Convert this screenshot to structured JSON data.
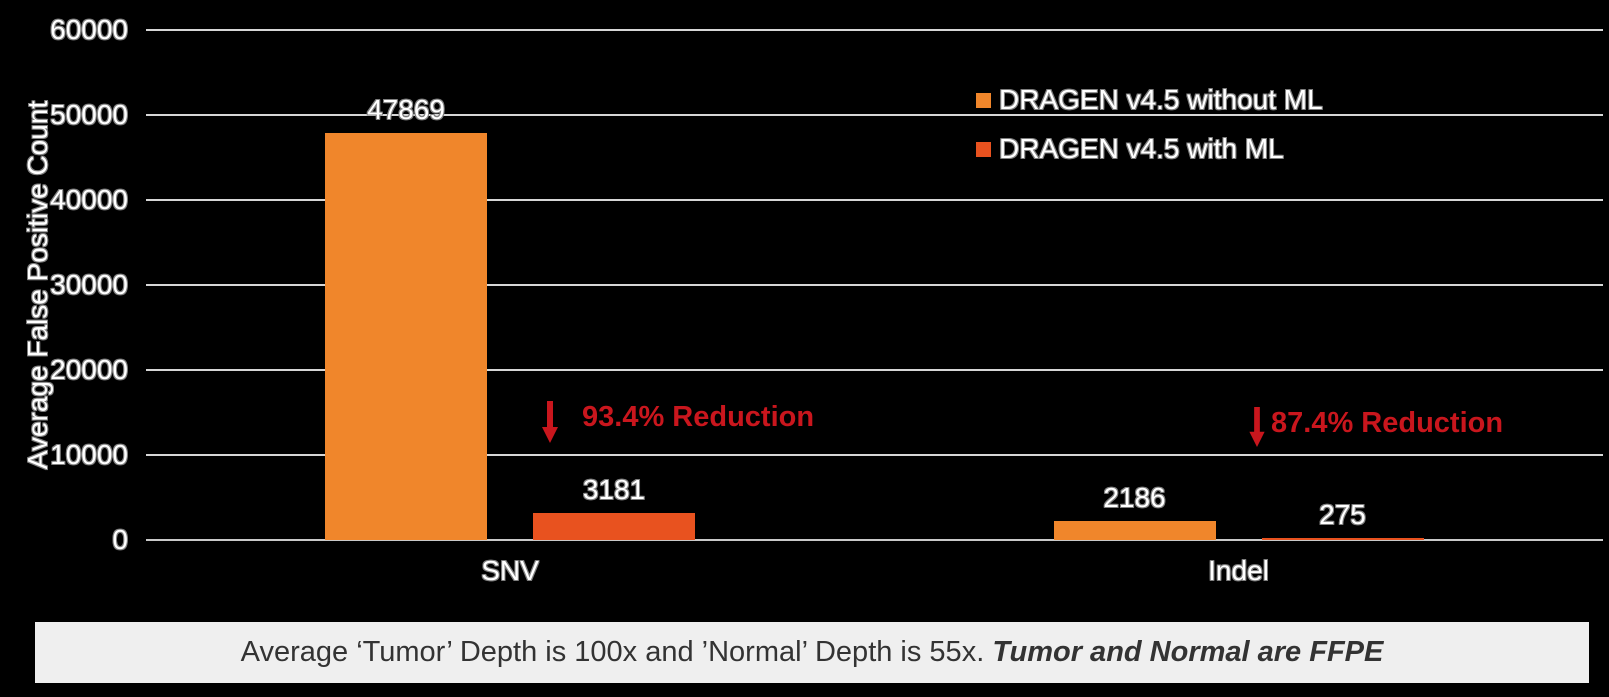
{
  "chart_data": {
    "type": "bar",
    "title": "",
    "categories": [
      "SNV",
      "Indel"
    ],
    "series": [
      {
        "name": "DRAGEN v4.5 without ML",
        "color": "#F0862B",
        "values": [
          47869,
          2186
        ]
      },
      {
        "name": "DRAGEN v4.5 with ML",
        "color": "#E8521F",
        "values": [
          3181,
          275
        ]
      }
    ],
    "ylabel": "Average False Positive Count",
    "xlabel": "",
    "ylim": [
      0,
      60000
    ],
    "yticks": [
      0,
      10000,
      20000,
      30000,
      40000,
      50000,
      60000
    ],
    "grid": true,
    "legend_position": "top-right",
    "annotations": [
      {
        "category": "SNV",
        "text": "93.4% Reduction",
        "arrow": "down"
      },
      {
        "category": "Indel",
        "text": "87.4% Reduction",
        "arrow": "down"
      }
    ],
    "colors": {
      "annotation_red": "#C9161D",
      "gridline": "#D6D6D6",
      "background": "#000000",
      "label_text": "#FFFFFF"
    }
  },
  "caption": {
    "normal": "Average ‘Tumor’ Depth is 100x and ’Normal’ Depth is 55x. ",
    "emphasis": "Tumor and Normal are FFPE",
    "background": "#EFEFEF",
    "text_color": "#333333"
  }
}
